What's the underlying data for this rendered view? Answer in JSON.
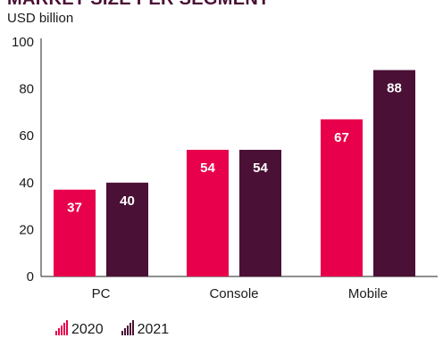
{
  "chart_data": {
    "type": "bar",
    "title": "MARKET SIZE PER SEGMENT",
    "ylabel": "USD billion",
    "xlabel": "",
    "categories": [
      "PC",
      "Console",
      "Mobile"
    ],
    "series": [
      {
        "name": "2020",
        "values": [
          37,
          54,
          67
        ],
        "color": "#e8004c"
      },
      {
        "name": "2021",
        "values": [
          40,
          54,
          88
        ],
        "color": "#4a1035"
      }
    ],
    "ylim": [
      0,
      100
    ],
    "yticks": [
      0,
      20,
      40,
      60,
      80,
      100
    ],
    "grid": false,
    "legend": "bottom-left",
    "data_labels": true
  }
}
